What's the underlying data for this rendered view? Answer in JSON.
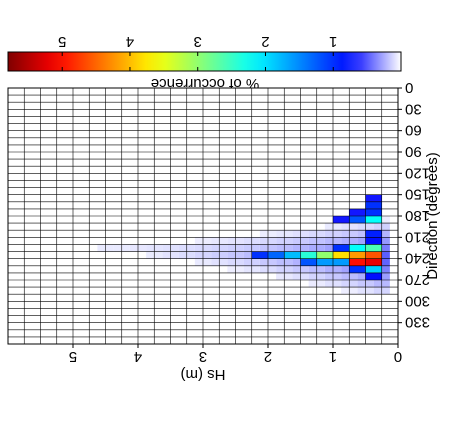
{
  "chart_data": [
    {
      "type": "heatmap",
      "orientation": "rotated 180 degrees",
      "title": "",
      "xlabel": "Hs (m)",
      "ylabel": "Direction (degrees)",
      "x_ticks": [
        "0",
        "1",
        "2",
        "3",
        "4",
        "5"
      ],
      "y_ticks": [
        "0",
        "30",
        "60",
        "90",
        "120",
        "150",
        "180",
        "210",
        "240",
        "270",
        "300",
        "330"
      ],
      "xlim": [
        0,
        6
      ],
      "ylim": [
        0,
        360
      ],
      "hs_bin_width_m": 0.25,
      "direction_bin_width_deg": 10,
      "grid": true,
      "value_unit": "% of occurrence",
      "cells": [
        {
          "hs": 0.375,
          "dir": 245,
          "value": 5.2
        },
        {
          "hs": 0.625,
          "dir": 245,
          "value": 5.0
        },
        {
          "hs": 0.375,
          "dir": 235,
          "value": 4.6
        },
        {
          "hs": 0.625,
          "dir": 235,
          "value": 4.2
        },
        {
          "hs": 0.875,
          "dir": 235,
          "value": 3.8
        },
        {
          "hs": 1.125,
          "dir": 235,
          "value": 3.0
        },
        {
          "hs": 1.375,
          "dir": 235,
          "value": 2.4
        },
        {
          "hs": 0.375,
          "dir": 225,
          "value": 2.6
        },
        {
          "hs": 0.625,
          "dir": 225,
          "value": 2.2
        },
        {
          "hs": 0.375,
          "dir": 255,
          "value": 1.9
        },
        {
          "hs": 0.875,
          "dir": 245,
          "value": 1.6
        },
        {
          "hs": 1.125,
          "dir": 245,
          "value": 1.6
        },
        {
          "hs": 1.625,
          "dir": 235,
          "value": 1.8
        },
        {
          "hs": 0.375,
          "dir": 185,
          "value": 2.2
        },
        {
          "hs": 0.625,
          "dir": 185,
          "value": 1.2
        },
        {
          "hs": 1.875,
          "dir": 235,
          "value": 1.3
        },
        {
          "hs": 0.875,
          "dir": 225,
          "value": 1.0
        },
        {
          "hs": 1.375,
          "dir": 245,
          "value": 1.2
        },
        {
          "hs": 2.125,
          "dir": 235,
          "value": 1.0
        },
        {
          "hs": 0.625,
          "dir": 255,
          "value": 1.0
        },
        {
          "hs": 0.375,
          "dir": 175,
          "value": 1.0
        },
        {
          "hs": 0.375,
          "dir": 165,
          "value": 1.0
        },
        {
          "hs": 0.375,
          "dir": 265,
          "value": 0.8
        },
        {
          "hs": 0.375,
          "dir": 205,
          "value": 0.9
        },
        {
          "hs": 0.375,
          "dir": 215,
          "value": 0.8
        },
        {
          "hs": 0.625,
          "dir": 175,
          "value": 0.7
        },
        {
          "hs": 0.875,
          "dir": 185,
          "value": 0.7
        },
        {
          "hs": 0.375,
          "dir": 155,
          "value": 0.7
        }
      ]
    },
    {
      "type": "heatmap",
      "chart_role": "colorbar",
      "title": "% of occurrence",
      "ticks": [
        "1",
        "2",
        "3",
        "4",
        "5"
      ],
      "range": [
        0,
        5.8
      ],
      "colormap": "jet, white at the low end"
    }
  ]
}
